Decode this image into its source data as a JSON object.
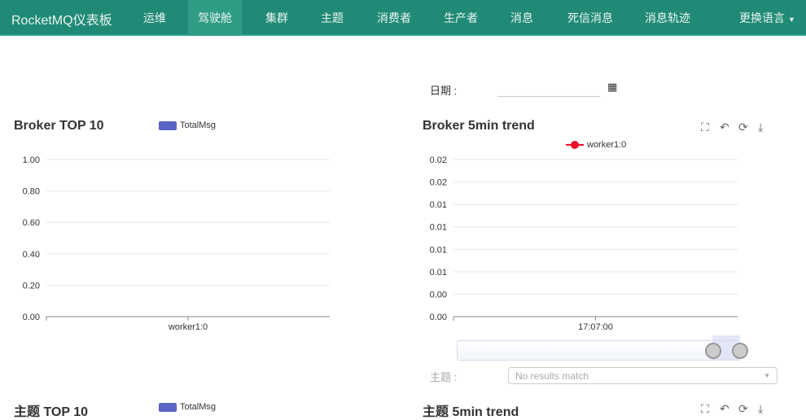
{
  "nav": {
    "brand": "RocketMQ仪表板",
    "items": [
      "运维",
      "驾驶舱",
      "集群",
      "主题",
      "消费者",
      "生产者",
      "消息",
      "死信消息",
      "消息轨迹"
    ],
    "active": "驾驶舱",
    "language": "更换语言"
  },
  "date": {
    "label": "日期 :",
    "value": ""
  },
  "topic_filter": {
    "label": "主题 :",
    "placeholder": "No results match"
  },
  "toolbox_icons": [
    "crop-icon",
    "undo-icon",
    "refresh-icon",
    "download-icon"
  ],
  "panels": {
    "broker_top": "Broker TOP 10",
    "broker_trend": "Broker 5min trend",
    "topic_top": "主题 TOP 10",
    "topic_trend": "主题 5min trend",
    "topic_top_legend": "TotalMsg"
  },
  "colors": {
    "nav": "#218a76",
    "bar_series": "#5b63c6",
    "line_series": "#e8102a"
  },
  "chart_data": [
    {
      "type": "bar",
      "title": "Broker TOP 10",
      "categories": [
        "worker1:0"
      ],
      "series": [
        {
          "name": "TotalMsg",
          "values": [
            0
          ]
        }
      ],
      "ylim": [
        0,
        1
      ],
      "yticks": [
        "0.00",
        "0.20",
        "0.40",
        "0.60",
        "0.80",
        "1.00"
      ],
      "grid": true,
      "legend": "top"
    },
    {
      "type": "line",
      "title": "Broker 5min trend",
      "x": [
        "17:07:00"
      ],
      "series": [
        {
          "name": "worker1:0",
          "values": [
            0
          ]
        }
      ],
      "yticks": [
        "0.00",
        "0.00",
        "0.01",
        "0.01",
        "0.01",
        "0.01",
        "0.02",
        "0.02"
      ],
      "grid": true,
      "legend": "top"
    }
  ]
}
